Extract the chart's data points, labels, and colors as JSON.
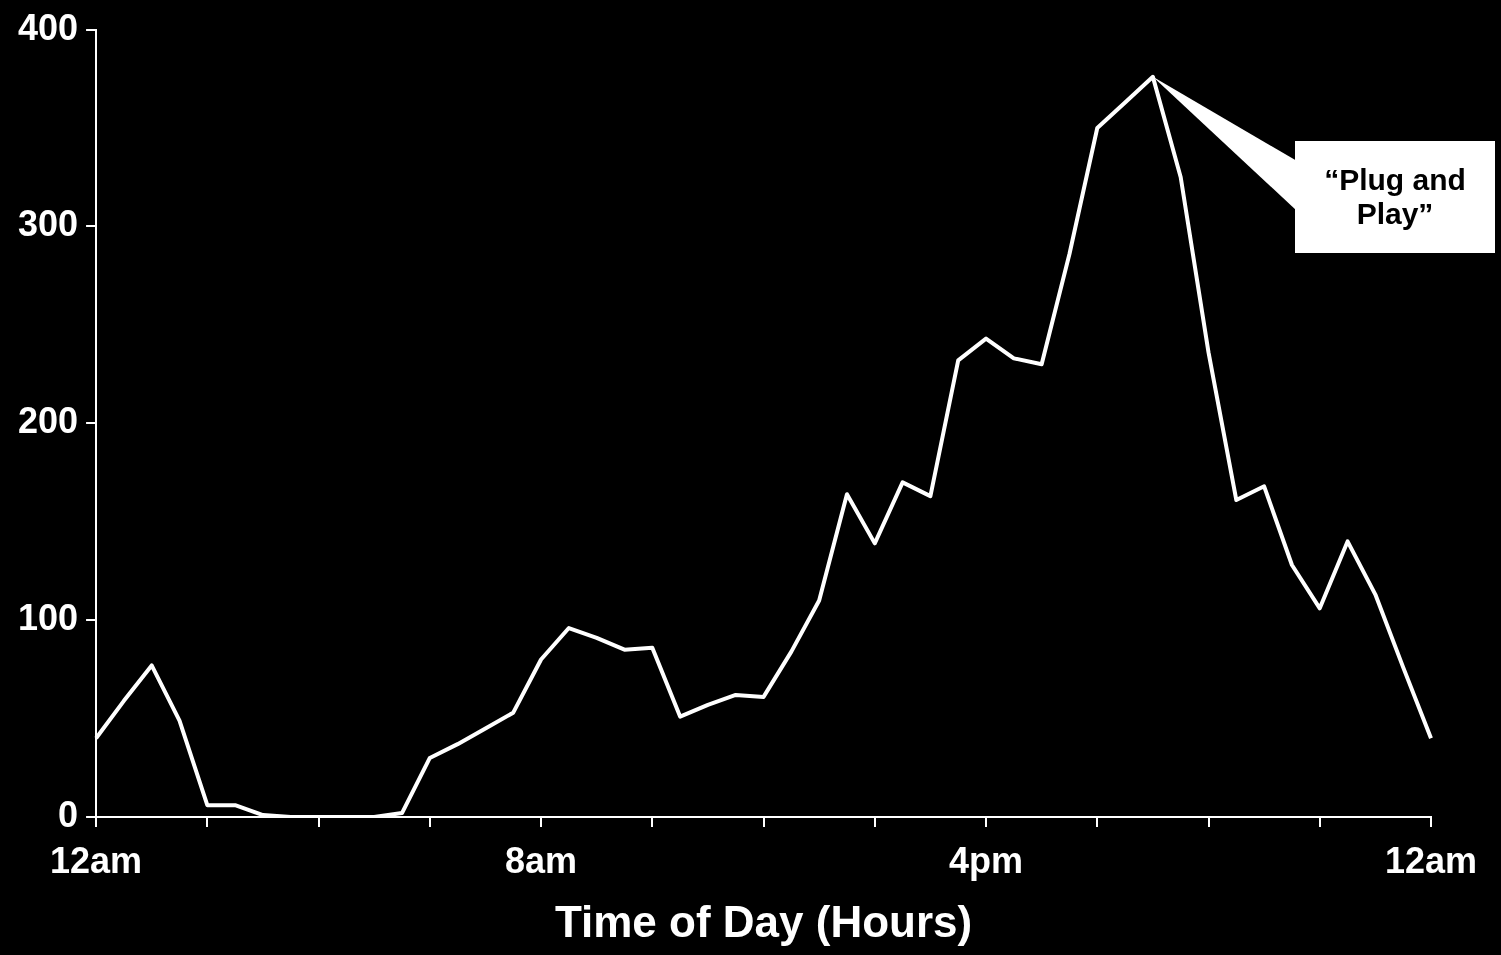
{
  "chart_data": {
    "type": "line",
    "xlabel": "Time of Day (Hours)",
    "categories": [
      "12am",
      null,
      null,
      null,
      null,
      null,
      null,
      null,
      null,
      null,
      null,
      null,
      null,
      null,
      null,
      null,
      "8am",
      null,
      null,
      null,
      null,
      null,
      null,
      null,
      null,
      null,
      null,
      null,
      null,
      null,
      null,
      null,
      "4pm",
      null,
      null,
      null,
      null,
      null,
      null,
      null,
      null,
      null,
      null,
      null,
      null,
      null,
      null,
      null,
      "12am"
    ],
    "series": [
      {
        "color": "#ffffff",
        "values": [
          40,
          59,
          77,
          49,
          6,
          6,
          1,
          0,
          0,
          0,
          0,
          2,
          30,
          37,
          45,
          53,
          80,
          96,
          91,
          85,
          86,
          51,
          57,
          62,
          61,
          84,
          110,
          164,
          139,
          170,
          163,
          232,
          243,
          233,
          230,
          286,
          350,
          363,
          376,
          325,
          236,
          161,
          168,
          128,
          106,
          140,
          113,
          76,
          40
        ]
      }
    ],
    "ylim": [
      0,
      400
    ],
    "yticks": [
      0,
      100,
      200,
      300,
      400
    ],
    "grid": false,
    "legend": false,
    "line_style": "solid",
    "annotations": [
      "“Plug and Play”"
    ]
  }
}
